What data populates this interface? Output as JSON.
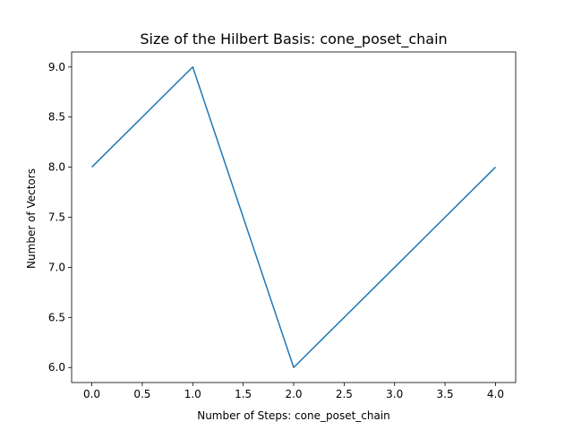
{
  "chart_data": {
    "type": "line",
    "title": "Size of the Hilbert Basis: cone_poset_chain",
    "xlabel": "Number of Steps: cone_poset_chain",
    "ylabel": "Number of Vectors",
    "x": [
      0,
      1,
      2,
      3,
      4
    ],
    "series": [
      {
        "values": [
          8,
          9,
          6,
          7,
          8
        ],
        "color": "#1f77b4"
      }
    ],
    "xlim": [
      -0.2,
      4.2
    ],
    "ylim": [
      5.85,
      9.15
    ],
    "xticks": [
      "0.0",
      "0.5",
      "1.0",
      "1.5",
      "2.0",
      "2.5",
      "3.0",
      "3.5",
      "4.0"
    ],
    "yticks": [
      "6.0",
      "6.5",
      "7.0",
      "7.5",
      "8.0",
      "8.5",
      "9.0"
    ],
    "grid": false,
    "legend": "none"
  }
}
